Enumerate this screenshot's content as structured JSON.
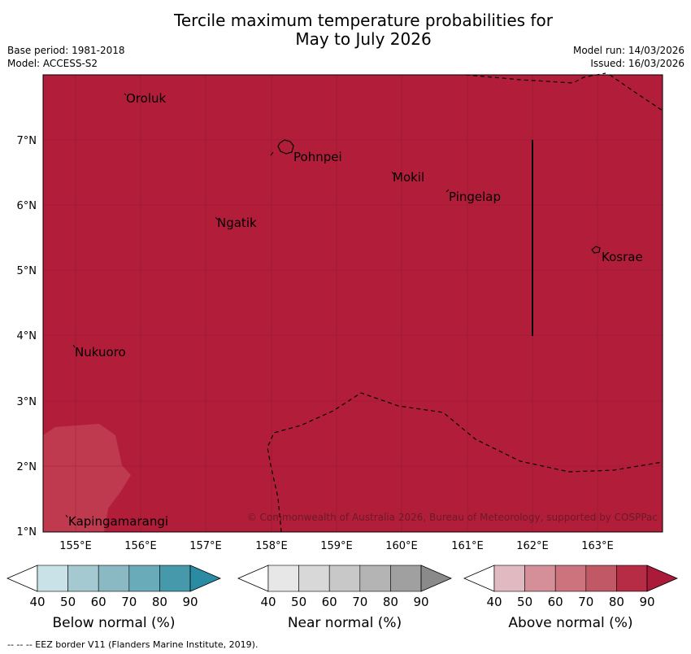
{
  "header": {
    "title_line1": "Tercile maximum temperature probabilities for",
    "title_line2": "May to July 2026",
    "base_period": "Base period: 1981-2018",
    "model": "Model: ACCESS-S2",
    "model_run": "Model run: 14/03/2026",
    "issued": "Issued: 16/03/2026"
  },
  "map": {
    "background_color": "#b21e3a",
    "lower_prob_color": "#c03a4f",
    "lon_labels": [
      "155°E",
      "156°E",
      "157°E",
      "158°E",
      "159°E",
      "160°E",
      "161°E",
      "162°E",
      "163°E"
    ],
    "lat_labels": [
      "7°N",
      "6°N",
      "5°N",
      "4°N",
      "3°N",
      "2°N",
      "1°N"
    ],
    "places": [
      "Oroluk",
      "Pohnpei",
      "Mokil",
      "Pingelap",
      "Ngatik",
      "Kosrae",
      "Nukuoro",
      "Kapingamarangi"
    ],
    "copyright": "© Commonwealth of Australia 2026, Bureau of Meteorology, supported by COSPPac"
  },
  "colorbars": [
    {
      "title": "Below normal (%)",
      "ticks": [
        "40",
        "50",
        "60",
        "70",
        "80",
        "90"
      ],
      "colors": [
        "#ffffff",
        "#c9e2e8",
        "#a5c9d0",
        "#8ab9c3",
        "#69abb8",
        "#4699ab",
        "#2b8ba3"
      ]
    },
    {
      "title": "Near normal (%)",
      "ticks": [
        "40",
        "50",
        "60",
        "70",
        "80",
        "90"
      ],
      "colors": [
        "#ffffff",
        "#e7e7e7",
        "#d8d8d8",
        "#c8c8c8",
        "#b4b4b4",
        "#a0a0a0",
        "#8a8a8a"
      ]
    },
    {
      "title": "Above normal (%)",
      "ticks": [
        "40",
        "50",
        "60",
        "70",
        "80",
        "90"
      ],
      "colors": [
        "#ffffff",
        "#e1b9c1",
        "#d58f99",
        "#cc737d",
        "#c15865",
        "#b62c44",
        "#ab1a39"
      ]
    }
  ],
  "footnote": "-- -- -- EEZ border V11 (Flanders Marine Institute, 2019)."
}
